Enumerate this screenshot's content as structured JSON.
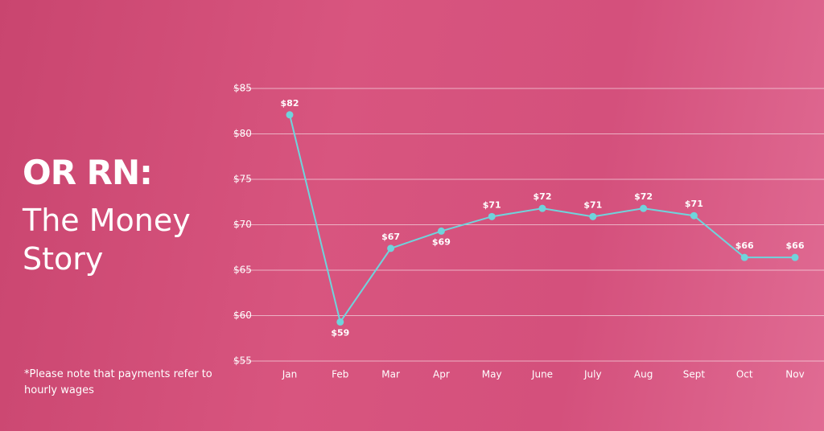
{
  "title": "OR RN:",
  "subtitle": "The Money Story",
  "note": "*Please note that payments refer to hourly wages",
  "chart_data": {
    "type": "line",
    "categories": [
      "Jan",
      "Feb",
      "Mar",
      "Apr",
      "May",
      "June",
      "July",
      "Aug",
      "Sept",
      "Oct",
      "Nov"
    ],
    "values": [
      82.1,
      59.3,
      67.4,
      69.3,
      70.9,
      71.8,
      70.9,
      71.8,
      71.0,
      66.4,
      66.4
    ],
    "value_labels": [
      "$82",
      "$59",
      "$67",
      "$69",
      "$71",
      "$72",
      "$71",
      "$72",
      "$71",
      "$66",
      "$66"
    ],
    "color": "#6fd4dc",
    "ylim": [
      55,
      85
    ],
    "yticks": [
      {
        "value": 55,
        "label": "$55"
      },
      {
        "value": 60,
        "label": "$60"
      },
      {
        "value": 65,
        "label": "$65"
      },
      {
        "value": 70,
        "label": "$70"
      },
      {
        "value": 75,
        "label": "$75"
      },
      {
        "value": 80,
        "label": "$80"
      },
      {
        "value": 85,
        "label": "$85"
      }
    ],
    "grid": true
  }
}
